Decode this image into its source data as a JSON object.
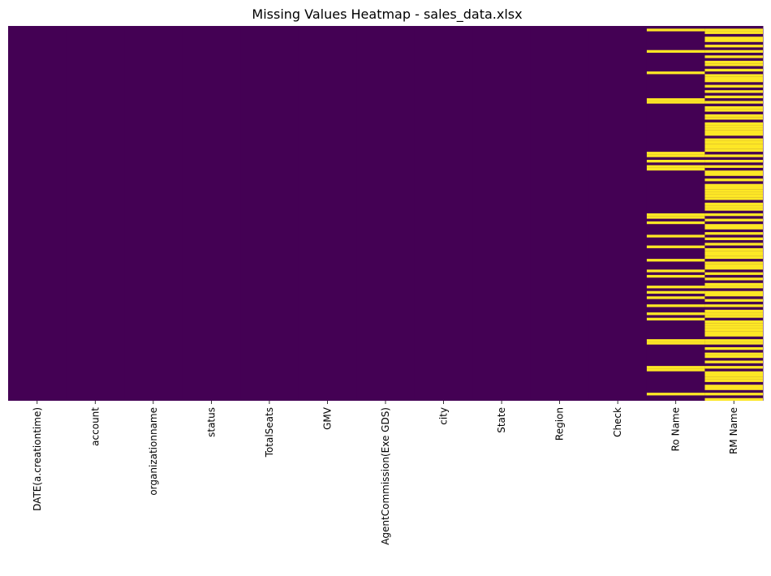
{
  "chart_data": {
    "type": "heatmap",
    "title": "Missing Values Heatmap - sales_data.xlsx",
    "columns": [
      "DATE(a.creationtime)",
      "account",
      "organizationname",
      "status",
      "TotalSeats",
      "GMV",
      "AgentCommission(Exe GDS)",
      "city",
      "State",
      "Region",
      "Check",
      "Ro Name",
      "RM Name"
    ],
    "row_count": 140,
    "present_color": "#440154",
    "missing_color": "#fde725",
    "colorbar": false,
    "missing_rows": {
      "DATE(a.creationtime)": [],
      "account": [],
      "organizationname": [],
      "status": [],
      "TotalSeats": [],
      "GMV": [],
      "AgentCommission(Exe GDS)": [],
      "city": [],
      "State": [],
      "Region": [],
      "Check": [],
      "Ro Name": [
        1,
        9,
        17,
        27,
        28,
        47,
        48,
        50,
        52,
        53,
        70,
        71,
        73,
        78,
        82,
        87,
        91,
        93,
        97,
        99,
        101,
        104,
        107,
        109,
        117,
        118,
        127,
        128,
        137
      ],
      "RM Name": [
        1,
        2,
        4,
        5,
        7,
        9,
        11,
        13,
        14,
        16,
        18,
        19,
        20,
        22,
        24,
        26,
        28,
        30,
        31,
        33,
        34,
        36,
        37,
        38,
        39,
        40,
        42,
        43,
        44,
        45,
        46,
        48,
        50,
        52,
        54,
        55,
        57,
        59,
        60,
        61,
        62,
        63,
        64,
        66,
        67,
        68,
        70,
        72,
        74,
        75,
        77,
        79,
        81,
        83,
        84,
        85,
        86,
        88,
        89,
        90,
        92,
        94,
        96,
        97,
        99,
        100,
        102,
        104,
        106,
        107,
        108,
        110,
        111,
        112,
        113,
        114,
        115,
        117,
        118,
        120,
        122,
        123,
        125,
        127,
        129,
        130,
        131,
        132,
        134,
        135,
        137,
        139
      ]
    }
  }
}
